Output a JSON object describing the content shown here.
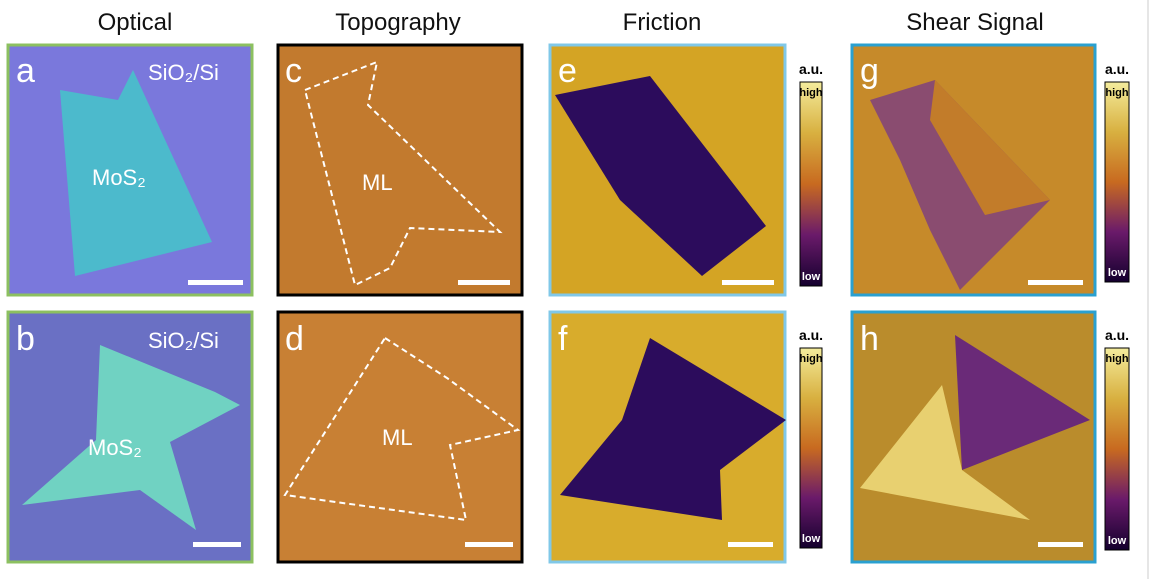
{
  "columns": [
    "Optical",
    "Topography",
    "Friction",
    "Shear Signal"
  ],
  "panels": [
    {
      "letter": "a",
      "substrate": "SiO₂/Si",
      "flake": "MoS₂"
    },
    {
      "letter": "b",
      "substrate": "SiO₂/Si",
      "flake": "MoS₂"
    },
    {
      "letter": "c",
      "flake": "ML"
    },
    {
      "letter": "d",
      "flake": "ML"
    },
    {
      "letter": "e"
    },
    {
      "letter": "f"
    },
    {
      "letter": "g"
    },
    {
      "letter": "h"
    }
  ],
  "colorbars": [
    {
      "unit": "a.u.",
      "high": "high",
      "low": "low"
    },
    {
      "unit": "a.u.",
      "high": "high",
      "low": "low"
    },
    {
      "unit": "a.u.",
      "high": "high",
      "low": "low"
    },
    {
      "unit": "a.u.",
      "high": "high",
      "low": "low"
    }
  ]
}
